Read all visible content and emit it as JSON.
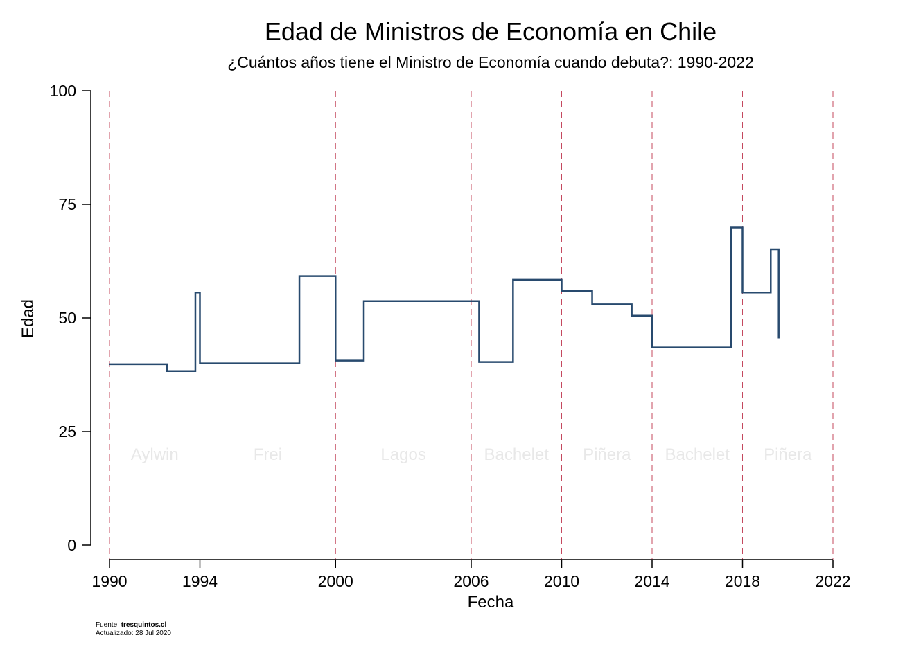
{
  "chart_data": {
    "type": "line",
    "step": true,
    "title": "Edad de Ministros de Economía en Chile",
    "subtitle": "¿Cuántos años tiene el Ministro de Economía cuando debuta?: 1990-2022",
    "xlabel": "Fecha",
    "ylabel": "Edad",
    "xlim": [
      1990,
      2022
    ],
    "ylim": [
      0,
      100
    ],
    "x_ticks": [
      1990,
      1994,
      2000,
      2006,
      2010,
      2014,
      2018,
      2022
    ],
    "y_ticks": [
      0,
      25,
      50,
      75,
      100
    ],
    "vertical_reference_lines": [
      1990,
      1994,
      2000,
      2006,
      2010,
      2014,
      2018,
      2022
    ],
    "reference_line_color": "#c4485e",
    "line_color": "#284a6e",
    "grid": false,
    "era_labels": [
      {
        "label": "Aylwin",
        "x": 1992,
        "y": 20
      },
      {
        "label": "Frei",
        "x": 1997,
        "y": 20
      },
      {
        "label": "Lagos",
        "x": 2003,
        "y": 20
      },
      {
        "label": "Bachelet",
        "x": 2008,
        "y": 20
      },
      {
        "label": "Piñera",
        "x": 2012,
        "y": 20
      },
      {
        "label": "Bachelet",
        "x": 2016,
        "y": 20
      },
      {
        "label": "Piñera",
        "x": 2020,
        "y": 20
      }
    ],
    "series": [
      {
        "points": [
          {
            "x": 1990.0,
            "y": 39.8
          },
          {
            "x": 1992.55,
            "y": 38.3
          },
          {
            "x": 1993.8,
            "y": 55.6
          },
          {
            "x": 1994.0,
            "y": 40.0
          },
          {
            "x": 1998.4,
            "y": 59.2
          },
          {
            "x": 2000.0,
            "y": 40.6
          },
          {
            "x": 2001.25,
            "y": 53.7
          },
          {
            "x": 2006.35,
            "y": 40.3
          },
          {
            "x": 2007.85,
            "y": 58.4
          },
          {
            "x": 2010.0,
            "y": 55.9
          },
          {
            "x": 2011.35,
            "y": 53.0
          },
          {
            "x": 2013.1,
            "y": 50.5
          },
          {
            "x": 2014.0,
            "y": 43.5
          },
          {
            "x": 2017.5,
            "y": 69.9
          },
          {
            "x": 2018.0,
            "y": 55.6
          },
          {
            "x": 2019.25,
            "y": 65.1
          },
          {
            "x": 2019.6,
            "y": 45.5
          }
        ]
      }
    ]
  },
  "footer": {
    "source_label": "Fuente: ",
    "source_value": "tresquintos.cl",
    "updated": "Actualizado: 28 Jul 2020"
  }
}
